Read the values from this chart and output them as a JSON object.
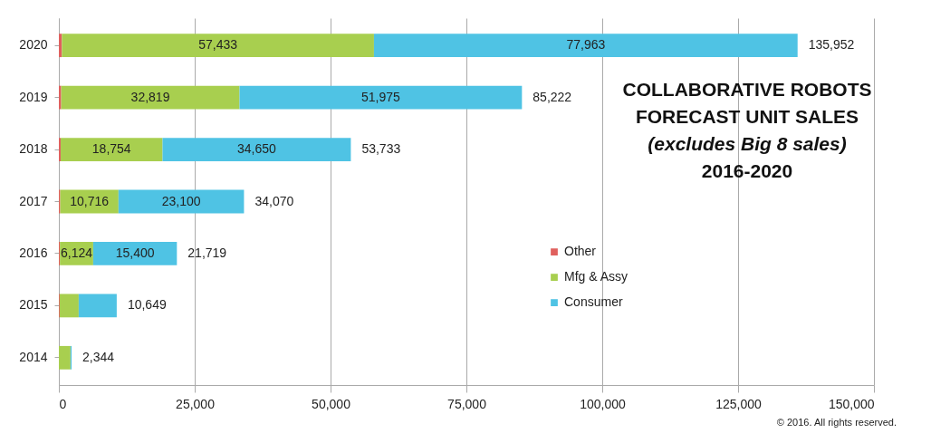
{
  "chart_data": {
    "type": "bar",
    "orientation": "horizontal",
    "stacked": true,
    "title": "COLLABORATIVE ROBOTS FORECAST UNIT SALES",
    "subtitle": "(excludes Big 8 sales)",
    "annotations": [
      "2016-2020",
      "© 2016. All rights reserved."
    ],
    "categories": [
      "2020",
      "2019",
      "2018",
      "2017",
      "2016",
      "2015",
      "2014"
    ],
    "series": [
      {
        "name": "Other",
        "color": "#e0605e",
        "values": [
          556,
          428,
          329,
          254,
          195,
          150,
          null
        ]
      },
      {
        "name": "Mfg & Assy",
        "color": "#a8cf4f",
        "values": [
          57433,
          32819,
          18754,
          10716,
          6124,
          3500,
          2144
        ],
        "value_labels": [
          "57,433",
          "32,819",
          "18,754",
          "10,716",
          "6,124",
          null,
          null
        ]
      },
      {
        "name": "Consumer",
        "color": "#4fc3e4",
        "values": [
          77963,
          51975,
          34650,
          23100,
          15400,
          6999,
          200
        ],
        "value_labels": [
          "77,963",
          "51,975",
          "34,650",
          "23,100",
          "15,400",
          null,
          null
        ]
      }
    ],
    "totals": [
      "135,952",
      "85,222",
      "53,733",
      "34,070",
      "21,719",
      "10,649",
      "2,344"
    ],
    "xlim": [
      0,
      150000
    ],
    "xticks": [
      0,
      {
        "value": 25000,
        "label": "25,000"
      },
      {
        "value": 50000,
        "label": "50,000"
      },
      {
        "value": 75000,
        "label": "75,000"
      },
      {
        "value": 100000,
        "label": "100,000"
      },
      {
        "value": 125000,
        "label": "125,000"
      },
      {
        "value": 150000,
        "label": "150,000"
      }
    ],
    "grid": "x",
    "legend": "bottom right"
  }
}
